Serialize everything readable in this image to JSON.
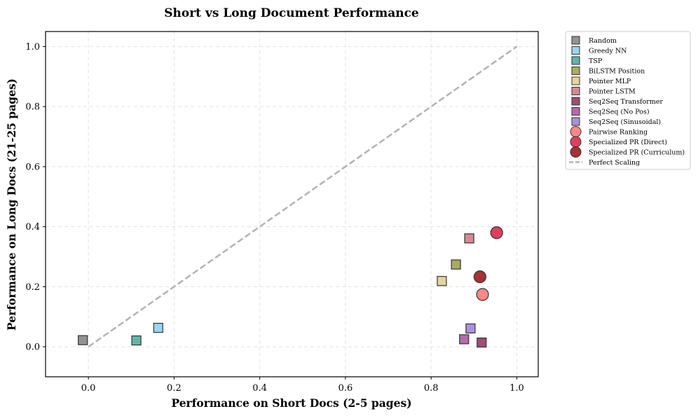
{
  "chart_data": {
    "type": "scatter",
    "title": "Short vs Long Document Performance",
    "xlabel": "Performance on Short Docs (2-5 pages)",
    "ylabel": "Performance on Long Docs (21-25 pages)",
    "xlim": [
      -0.1,
      1.05
    ],
    "ylim": [
      -0.1,
      1.05
    ],
    "xticks": [
      "0.0",
      "0.2",
      "0.4",
      "0.6",
      "0.8",
      "1.0"
    ],
    "yticks": [
      "0.0",
      "0.2",
      "0.4",
      "0.6",
      "0.8",
      "1.0"
    ],
    "grid": true,
    "legend_position": "outside-top-right",
    "series": [
      {
        "name": "Random",
        "marker": "square",
        "color": "#808080",
        "x": -0.013,
        "y": 0.022
      },
      {
        "name": "Greedy NN",
        "marker": "square",
        "color": "#87ceeb",
        "x": 0.163,
        "y": 0.063
      },
      {
        "name": "TSP",
        "marker": "square",
        "color": "#45a89a",
        "x": 0.112,
        "y": 0.021
      },
      {
        "name": "BiLSTM Position",
        "marker": "square",
        "color": "#9e9a46",
        "x": 0.858,
        "y": 0.274
      },
      {
        "name": "Pointer MLP",
        "marker": "square",
        "color": "#e0cd8a",
        "x": 0.825,
        "y": 0.219
      },
      {
        "name": "Pointer LSTM",
        "marker": "square",
        "color": "#cf7384",
        "x": 0.889,
        "y": 0.361
      },
      {
        "name": "Seq2Seq Transformer",
        "marker": "square",
        "color": "#8b2f5e",
        "x": 0.918,
        "y": 0.014
      },
      {
        "name": "Seq2Seq (No Pos)",
        "marker": "square",
        "color": "#a8519b",
        "x": 0.877,
        "y": 0.025
      },
      {
        "name": "Seq2Seq (Sinusoidal)",
        "marker": "square",
        "color": "#9b7fd6",
        "x": 0.892,
        "y": 0.061
      },
      {
        "name": "Pairwise Ranking",
        "marker": "circle",
        "color": "#ff7b7b",
        "x": 0.92,
        "y": 0.174
      },
      {
        "name": "Specialized PR (Direct)",
        "marker": "circle",
        "color": "#dc2a48",
        "x": 0.953,
        "y": 0.38
      },
      {
        "name": "Specialized PR (Curriculum)",
        "marker": "circle",
        "color": "#9b1c20",
        "x": 0.914,
        "y": 0.233
      }
    ],
    "reference_line": {
      "name": "Perfect Scaling",
      "style": "dashed",
      "color": "#b3b3b3",
      "x": [
        0,
        1
      ],
      "y": [
        0,
        1
      ]
    }
  }
}
